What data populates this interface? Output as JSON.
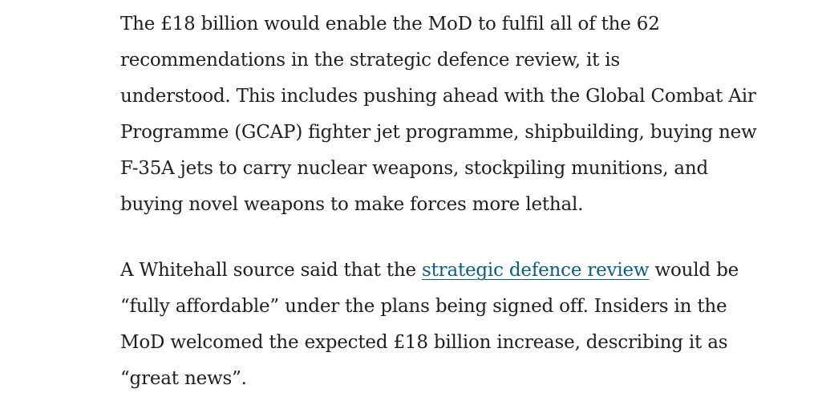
{
  "article": {
    "paragraph_1": {
      "lines": [
        "The £18 billion would enable the MoD to fulfil all of the 62",
        "recommendations in the strategic defence review, it is",
        "understood. This includes pushing ahead with the Global Combat Air",
        "Programme (GCAP) fighter jet programme, shipbuilding, buying new",
        "F-35A jets to carry nuclear weapons, stockpiling munitions, and",
        "buying novel weapons to make forces more lethal."
      ]
    },
    "paragraph_2": {
      "line_1_before_link": "A Whitehall source said that the ",
      "link_text": "strategic defence review",
      "line_1_after_link": " would be",
      "lines": [
        "“fully affordable” under the plans being signed off. Insiders in the",
        "MoD welcomed the expected £18 billion increase, describing it as",
        "“great news”."
      ]
    }
  }
}
